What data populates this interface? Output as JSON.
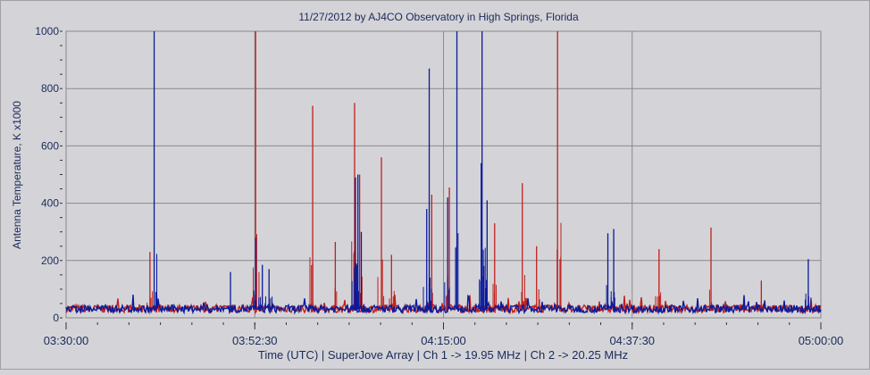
{
  "chart_data": {
    "type": "line",
    "title": "11/27/2012  by  AJ4CO Observatory  in  High Springs, Florida",
    "xlabel": "Time (UTC)  |  SuperJove Array  |  Ch 1 -> 19.95 MHz  |  Ch 2 -> 20.25 MHz",
    "ylabel": "Antenna Temperature, K x1000",
    "ylim": [
      0,
      1000
    ],
    "xlim_minutes_after_0330": [
      0,
      90
    ],
    "y_ticks": [
      "0",
      "200",
      "400",
      "600",
      "800",
      "1000"
    ],
    "y_tick_values": [
      0,
      200,
      400,
      600,
      800,
      1000
    ],
    "x_ticks": [
      "03:30:00",
      "03:52:30",
      "04:15:00",
      "04:37:30",
      "05:00:00"
    ],
    "x_tick_values": [
      0,
      22.5,
      45,
      67.5,
      90
    ],
    "grid": true,
    "baseline_level": 30,
    "series": [
      {
        "name": "Ch 1 -> 19.95 MHz",
        "color": "#0a1a9a",
        "spikes": [
          [
            10.5,
            1000
          ],
          [
            19.6,
            160
          ],
          [
            22.6,
            280
          ],
          [
            23.4,
            185
          ],
          [
            24.2,
            170
          ],
          [
            34.5,
            490
          ],
          [
            34.8,
            500
          ],
          [
            35.2,
            300
          ],
          [
            43.0,
            380
          ],
          [
            43.3,
            870
          ],
          [
            45.5,
            420
          ],
          [
            46.6,
            1000
          ],
          [
            49.5,
            540
          ],
          [
            49.6,
            1000
          ],
          [
            50.2,
            410
          ],
          [
            64.6,
            295
          ],
          [
            65.3,
            310
          ],
          [
            88.5,
            205
          ]
        ]
      },
      {
        "name": "Ch 2 -> 20.25 MHz",
        "color": "#c0201c",
        "spikes": [
          [
            10.0,
            230
          ],
          [
            22.6,
            1000
          ],
          [
            29.4,
            740
          ],
          [
            32.1,
            265
          ],
          [
            34.4,
            750
          ],
          [
            35.0,
            500
          ],
          [
            37.6,
            560
          ],
          [
            38.8,
            220
          ],
          [
            43.6,
            430
          ],
          [
            45.7,
            455
          ],
          [
            51.1,
            330
          ],
          [
            54.4,
            470
          ],
          [
            56.1,
            250
          ],
          [
            58.6,
            1000
          ],
          [
            70.7,
            240
          ],
          [
            76.9,
            315
          ],
          [
            82.9,
            130
          ]
        ]
      }
    ]
  }
}
